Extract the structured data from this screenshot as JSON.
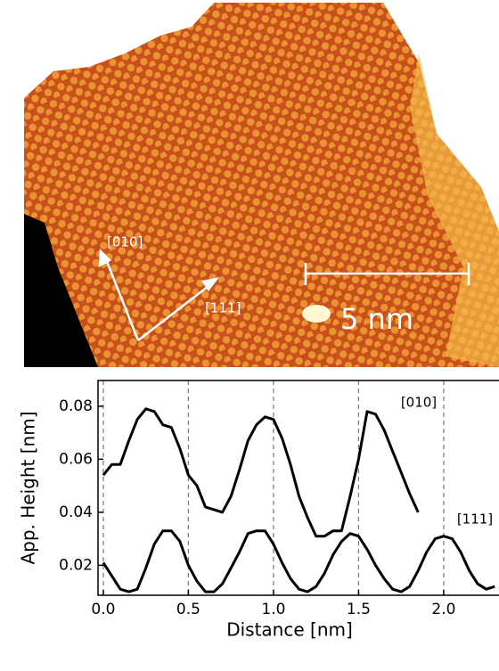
{
  "image": {
    "labels": [
      "[010]",
      "[111]"
    ],
    "scale_bar": "5 nm"
  },
  "chart_data": {
    "type": "line",
    "x_label": "Distance [nm]",
    "y_label": "App. Height [nm]",
    "x": [
      0,
      0.05,
      0.1,
      0.15,
      0.2,
      0.25,
      0.3,
      0.35,
      0.4,
      0.45,
      0.5,
      0.55,
      0.6,
      0.65,
      0.7,
      0.75,
      0.8,
      0.85,
      0.9,
      0.95,
      1.0,
      1.05,
      1.1,
      1.15,
      1.2,
      1.25,
      1.3,
      1.35,
      1.4,
      1.45,
      1.5,
      1.55,
      1.6,
      1.65,
      1.7,
      1.75,
      1.8,
      1.85,
      1.9,
      1.95,
      2.0,
      2.05,
      2.1,
      2.15,
      2.2,
      2.25,
      2.3
    ],
    "series": [
      {
        "name": "[010]",
        "color": "#000000",
        "values": [
          0.054,
          0.058,
          0.058,
          0.067,
          0.075,
          0.079,
          0.078,
          0.073,
          0.072,
          0.064,
          0.054,
          0.05,
          0.042,
          0.041,
          0.04,
          0.046,
          0.056,
          0.067,
          0.073,
          0.076,
          0.075,
          0.068,
          0.058,
          0.046,
          0.038,
          0.031,
          0.031,
          0.033,
          0.033,
          0.046,
          0.06,
          0.078,
          0.077,
          0.071,
          0.063,
          0.055,
          0.047,
          0.04,
          null,
          null,
          null,
          null,
          null,
          null,
          null,
          null,
          null
        ]
      },
      {
        "name": "[111]",
        "color": "#000000",
        "values": [
          0.021,
          0.016,
          0.011,
          0.01,
          0.011,
          0.019,
          0.028,
          0.033,
          0.033,
          0.029,
          0.02,
          0.014,
          0.01,
          0.01,
          0.013,
          0.019,
          0.025,
          0.032,
          0.033,
          0.033,
          0.028,
          0.021,
          0.015,
          0.011,
          0.01,
          0.012,
          0.017,
          0.024,
          0.029,
          0.032,
          0.031,
          0.026,
          0.02,
          0.015,
          0.011,
          0.01,
          0.012,
          0.018,
          0.025,
          0.03,
          0.031,
          0.03,
          0.025,
          0.018,
          0.013,
          0.011,
          0.012
        ]
      }
    ],
    "xlim": [
      -0.031,
      2.325
    ],
    "ylim": [
      0.0087,
      0.0897
    ],
    "xticks": [
      {
        "value": 0,
        "label": "0.0"
      },
      0.5,
      {
        "value": 1,
        "label": "1.0"
      },
      1.5,
      {
        "value": 2,
        "label": "2.0"
      }
    ],
    "yticks": [
      0.02,
      0.04,
      0.06,
      0.08
    ],
    "grid": "x"
  }
}
